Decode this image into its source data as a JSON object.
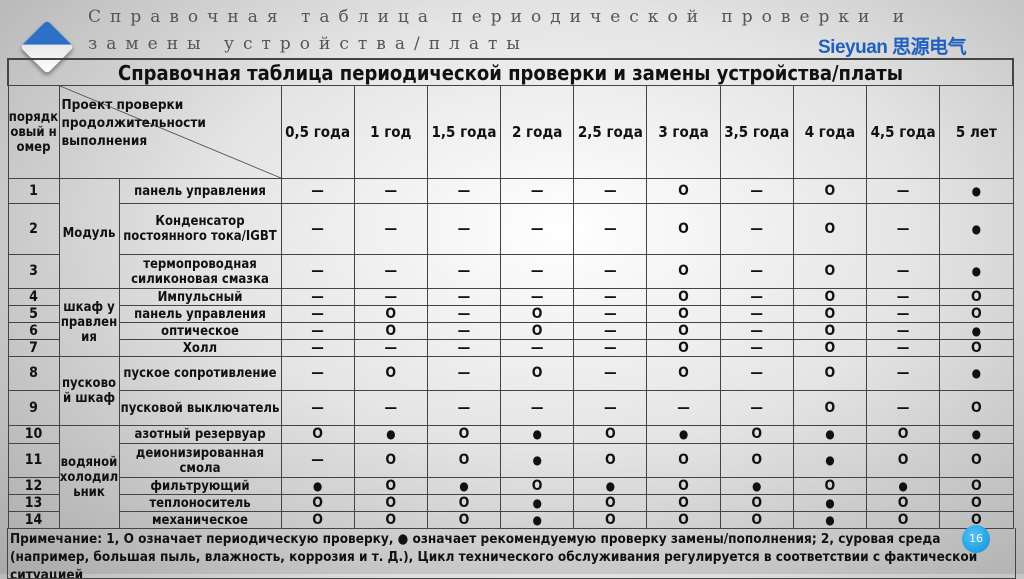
{
  "slide": {
    "title": "Справочная таблица периодической проверки и замены устройства/платы",
    "brand": "Sieyuan 思源电气",
    "page_number": "16"
  },
  "colors": {
    "brand": "#1f5fbf",
    "page_badge": "#0d8fd8"
  },
  "symbols": {
    "D": "—",
    "O": "O",
    "B": "●"
  },
  "table": {
    "caption": "Справочная таблица периодической проверки и замены устройства/платы",
    "seq_header": "порядковый номер",
    "project_header": "Проект проверки продолжительности выполнения",
    "columns": [
      "0,5 года",
      "1 год",
      "1,5 года",
      "2 года",
      "2,5 года",
      "3 года",
      "3,5 года",
      "4 года",
      "4,5 года",
      "5 лет"
    ],
    "groups": [
      {
        "name": "Модуль",
        "rows": [
          {
            "n": "1",
            "item": "панель управления",
            "v": "DDDDDODODB"
          },
          {
            "n": "2",
            "item": "Конденсатор постоянного тока/IGBT",
            "v": "DDDDDODODB"
          },
          {
            "n": "3",
            "item": "термопроводная силиконовая смазка",
            "v": "DDDDDODODB"
          }
        ]
      },
      {
        "name": "шкаф управления",
        "rows": [
          {
            "n": "4",
            "item": "Импульсный",
            "v": "DDDDDODODO"
          },
          {
            "n": "5",
            "item": "панель управления",
            "v": "DODODODODO"
          },
          {
            "n": "6",
            "item": "оптическое",
            "v": "DODODODODB"
          },
          {
            "n": "7",
            "item": "Холл",
            "v": "DDDDDODODO"
          }
        ]
      },
      {
        "name": "пусковой шкаф",
        "rows": [
          {
            "n": "8",
            "item": "пуское сопротивление",
            "v": "DODODODODB"
          },
          {
            "n": "9",
            "item": "пусковой выключатель",
            "v": "DDDDDDDODO"
          }
        ]
      },
      {
        "name": "водяной холодильник",
        "rows": [
          {
            "n": "10",
            "item": "азотный резервуар",
            "v": "OBOBOBOBOB"
          },
          {
            "n": "11",
            "item": "деионизированная смола",
            "v": "DOOBOOOBOO"
          },
          {
            "n": "12",
            "item": "фильтрующий",
            "v": "BOBOBOBOBO"
          },
          {
            "n": "13",
            "item": "теплоноситель",
            "v": "OOOBOOOBOO"
          },
          {
            "n": "14",
            "item": "механическое",
            "v": "OOOBOOOBOO"
          }
        ]
      }
    ],
    "note": "Примечание: 1, O означает периодическую проверку, ● означает рекомендуемую проверку замены/пополнения; 2, суровая среда (например, большая пыль, влажность, коррозия и т. Д.), Цикл технического обслуживания регулируется в соответствии с фактической ситуацией"
  }
}
